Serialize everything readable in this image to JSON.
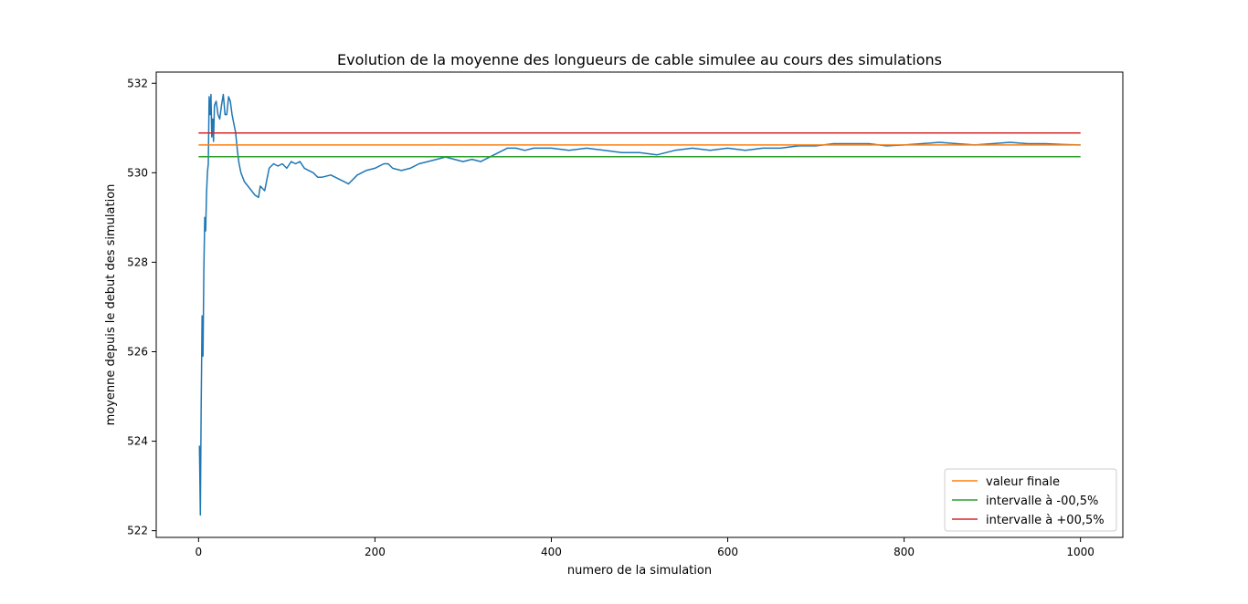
{
  "chart_data": {
    "type": "line",
    "title": "Evolution de la moyenne des longueurs de cable simulee au cours des simulations",
    "xlabel": "numero de la simulation",
    "ylabel": "moyenne depuis le debut des simulation",
    "xlim": [
      -48,
      1048
    ],
    "ylim": [
      521.85,
      532.25
    ],
    "xticks": [
      0,
      200,
      400,
      600,
      800,
      1000
    ],
    "yticks": [
      522,
      524,
      526,
      528,
      530,
      532
    ],
    "grid": false,
    "legend_position": "lower-right",
    "series": [
      {
        "name": "",
        "color": "#1f77b4",
        "x": [
          1,
          2,
          3,
          4,
          5,
          6,
          7,
          8,
          9,
          10,
          11,
          12,
          13,
          14,
          15,
          16,
          17,
          18,
          20,
          22,
          24,
          26,
          28,
          30,
          32,
          34,
          36,
          38,
          40,
          42,
          44,
          46,
          48,
          52,
          56,
          60,
          64,
          68,
          70,
          75,
          80,
          85,
          90,
          95,
          100,
          105,
          110,
          115,
          120,
          125,
          130,
          135,
          140,
          150,
          160,
          165,
          170,
          175,
          180,
          190,
          200,
          210,
          215,
          220,
          230,
          240,
          250,
          260,
          270,
          280,
          290,
          300,
          310,
          320,
          330,
          340,
          350,
          360,
          370,
          380,
          390,
          400,
          420,
          440,
          460,
          480,
          500,
          520,
          540,
          560,
          580,
          600,
          620,
          640,
          660,
          680,
          700,
          720,
          740,
          760,
          780,
          800,
          820,
          840,
          860,
          880,
          900,
          920,
          940,
          960,
          980,
          1000
        ],
        "values": [
          523.9,
          522.35,
          524.8,
          526.8,
          525.9,
          527.8,
          529.0,
          528.7,
          529.5,
          530.0,
          530.2,
          531.7,
          531.3,
          531.75,
          530.8,
          531.2,
          530.7,
          531.5,
          531.6,
          531.3,
          531.2,
          531.5,
          531.75,
          531.3,
          531.3,
          531.7,
          531.6,
          531.3,
          531.1,
          530.9,
          530.5,
          530.2,
          530.0,
          529.8,
          529.7,
          529.6,
          529.5,
          529.45,
          529.7,
          529.6,
          530.1,
          530.2,
          530.15,
          530.2,
          530.1,
          530.25,
          530.2,
          530.25,
          530.1,
          530.05,
          530.0,
          529.9,
          529.9,
          529.95,
          529.85,
          529.8,
          529.75,
          529.85,
          529.95,
          530.05,
          530.1,
          530.2,
          530.2,
          530.1,
          530.05,
          530.1,
          530.2,
          530.25,
          530.3,
          530.35,
          530.3,
          530.25,
          530.3,
          530.25,
          530.35,
          530.45,
          530.55,
          530.55,
          530.5,
          530.55,
          530.55,
          530.55,
          530.5,
          530.55,
          530.5,
          530.45,
          530.45,
          530.4,
          530.5,
          530.55,
          530.5,
          530.55,
          530.5,
          530.55,
          530.55,
          530.6,
          530.6,
          530.65,
          530.65,
          530.65,
          530.6,
          530.62,
          530.65,
          530.68,
          530.65,
          530.62,
          530.65,
          530.68,
          530.65,
          530.65,
          530.63,
          530.62
        ]
      },
      {
        "name": "valeur finale",
        "color": "#ff7f0e",
        "x": [
          0,
          1000
        ],
        "values": [
          530.62,
          530.62
        ]
      },
      {
        "name": "intervalle à -00,5%",
        "color": "#2ca02c",
        "x": [
          0,
          1000
        ],
        "values": [
          530.36,
          530.36
        ]
      },
      {
        "name": "intervalle à +00,5%",
        "color": "#d62728",
        "x": [
          0,
          1000
        ],
        "values": [
          530.89,
          530.89
        ]
      }
    ]
  }
}
